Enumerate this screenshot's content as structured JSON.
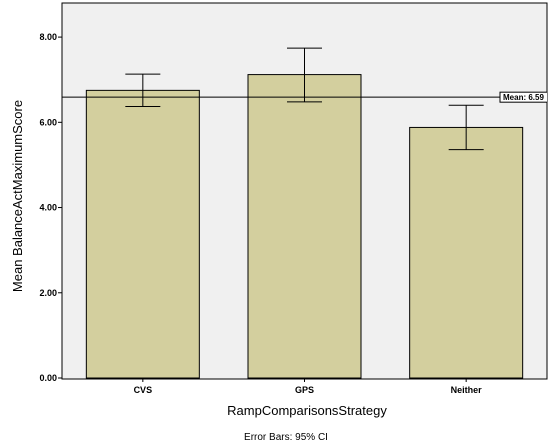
{
  "chart_data": {
    "type": "bar",
    "categories": [
      "CVS",
      "GPS",
      "Neither"
    ],
    "values": [
      6.75,
      7.12,
      5.88
    ],
    "error_bars": {
      "lower": [
        6.37,
        6.48,
        5.36
      ],
      "upper": [
        7.13,
        7.74,
        6.4
      ]
    },
    "reference_line": {
      "value": 6.59,
      "label": "Mean: 6.59"
    },
    "xlabel": "RampComparisonsStrategy",
    "ylabel": "Mean BalanceActMaximumScore",
    "ylim": [
      0,
      8.8
    ],
    "yticks": [
      0,
      2,
      4,
      6,
      8
    ],
    "ytick_labels": [
      "0.00",
      "2.00",
      "4.00",
      "6.00",
      "8.00"
    ],
    "footnote": "Error Bars: 95% CI",
    "grid": false,
    "colors": {
      "bar_fill": "#d3cf9e",
      "plot_background": "#f0f0f0",
      "stroke": "#000000"
    }
  }
}
